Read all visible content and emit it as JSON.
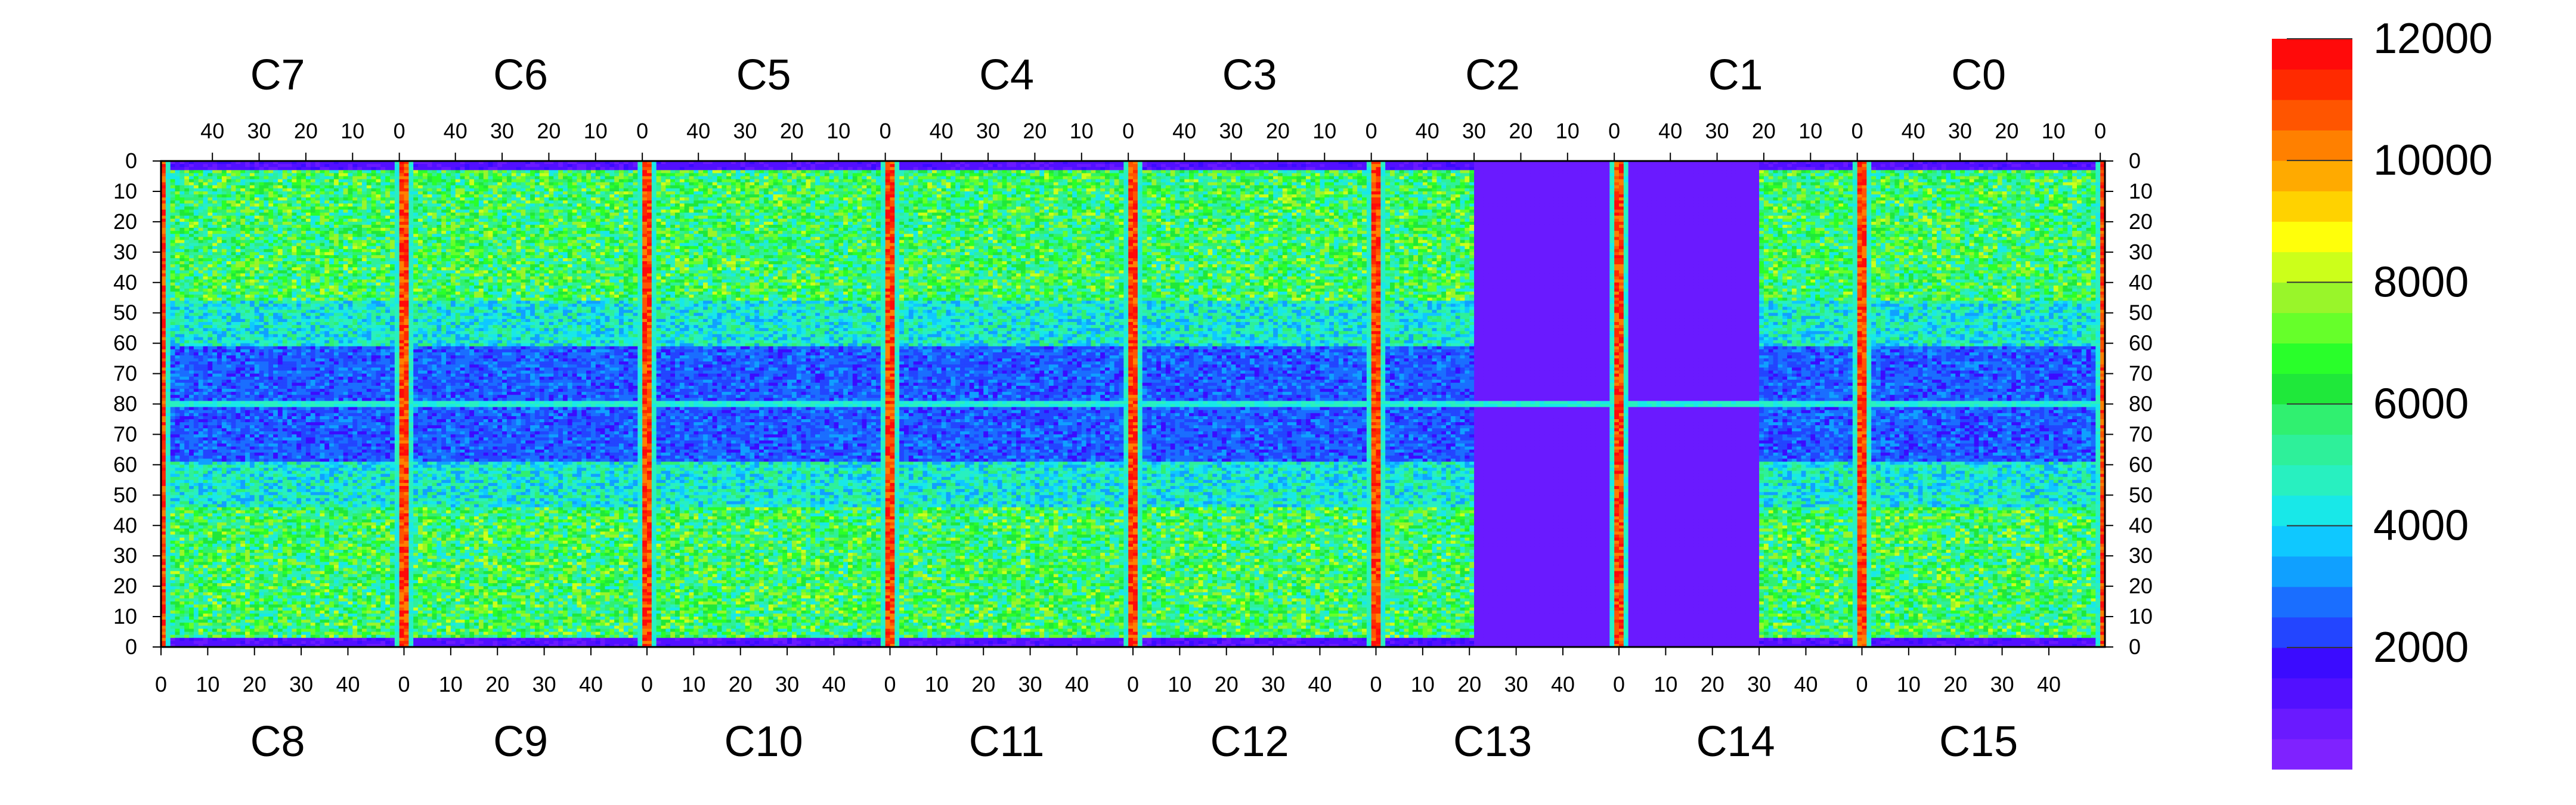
{
  "chart_data": {
    "type": "heatmap",
    "title": "",
    "xlabel": "",
    "ylabel": "",
    "top_chips": [
      "C7",
      "C6",
      "C5",
      "C4",
      "C3",
      "C2",
      "C1",
      "C0"
    ],
    "bottom_chips": [
      "C8",
      "C9",
      "C10",
      "C11",
      "C12",
      "C13",
      "C14",
      "C15"
    ],
    "top_x_ticks": [
      "40",
      "30",
      "20",
      "10",
      "0"
    ],
    "bottom_x_ticks": [
      "0",
      "10",
      "20",
      "30",
      "40"
    ],
    "y_ticks": [
      "0",
      "10",
      "20",
      "30",
      "40",
      "50",
      "60",
      "70",
      "80",
      "70",
      "60",
      "50",
      "40",
      "30",
      "20",
      "10",
      "0"
    ],
    "columns_per_chip": 52,
    "rows": 160,
    "colorbar": {
      "min": 0,
      "max": 12000,
      "ticks": [
        "2000",
        "4000",
        "6000",
        "8000",
        "10000",
        "12000"
      ],
      "tick_values": [
        2000,
        4000,
        6000,
        8000,
        10000,
        12000
      ],
      "colors": [
        "#7f22ff",
        "#6a1aff",
        "#5210ff",
        "#3b0bff",
        "#2345ff",
        "#1a6eff",
        "#10a0ff",
        "#0fc8ff",
        "#18e8e8",
        "#28f0c0",
        "#2ef09a",
        "#30f070",
        "#1fe83a",
        "#29ff2a",
        "#66ff2a",
        "#99f52a",
        "#ccff1a",
        "#ffff0a",
        "#ffd200",
        "#ffaa00",
        "#ff8000",
        "#ff5500",
        "#ff2a00",
        "#ff0a0a"
      ]
    },
    "hot_columns": [
      {
        "chip": 0,
        "col": 0
      },
      {
        "chip": 1,
        "col": 0
      },
      {
        "chip": 2,
        "col": 0
      },
      {
        "chip": 3,
        "col": 0
      },
      {
        "chip": 4,
        "col": 0
      },
      {
        "chip": 5,
        "col": 0
      },
      {
        "chip": 6,
        "col": 0
      },
      {
        "chip": 7,
        "col": 0
      }
    ],
    "grid": false,
    "legend": "right"
  }
}
